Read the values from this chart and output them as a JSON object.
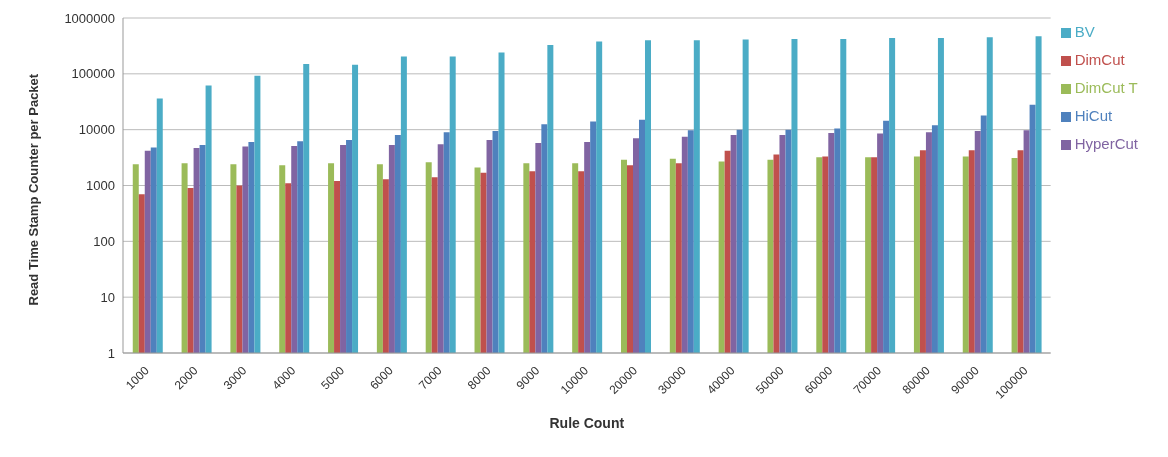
{
  "chart_data": {
    "type": "bar",
    "xlabel": "Rule Count",
    "ylabel": "Read Time  Stamp Counter per Packet",
    "log": "y",
    "grid": "y",
    "legend": "right",
    "categories": [
      "1000",
      "2000",
      "3000",
      "4000",
      "5000",
      "6000",
      "7000",
      "8000",
      "9000",
      "10000",
      "20000",
      "30000",
      "40000",
      "50000",
      "60000",
      "70000",
      "80000",
      "90000",
      "100000"
    ],
    "ylim": [
      1,
      1000000
    ],
    "yticks": [
      1,
      10,
      100,
      1000,
      10000,
      100000,
      1000000
    ],
    "series": [
      {
        "name": "DimCut T",
        "color": "#9bbb59",
        "values": [
          2400,
          2500,
          2400,
          2300,
          2500,
          2400,
          2600,
          2100,
          2500,
          2500,
          2900,
          3000,
          2700,
          2900,
          3200,
          3200,
          3300,
          3300,
          3100
        ]
      },
      {
        "name": "DimCut",
        "color": "#c0504d",
        "values": [
          700,
          900,
          1000,
          1100,
          1200,
          1300,
          1400,
          1700,
          1800,
          1800,
          2300,
          2500,
          4200,
          3600,
          3300,
          3200,
          4300,
          4300,
          4300
        ]
      },
      {
        "name": "HyperCut",
        "color": "#8064a2",
        "values": [
          4200,
          4700,
          5000,
          5100,
          5300,
          5300,
          5500,
          6500,
          5800,
          6000,
          7000,
          7500,
          8000,
          8000,
          8700,
          8500,
          9000,
          9500,
          9800
        ]
      },
      {
        "name": "HiCut",
        "color": "#4f81bd",
        "values": [
          4800,
          5300,
          6000,
          6200,
          6500,
          8000,
          9000,
          9500,
          12500,
          14000,
          15000,
          9800,
          10000,
          10000,
          10500,
          14500,
          12000,
          18000,
          28000
        ]
      },
      {
        "name": "BV",
        "color": "#4bacc6",
        "values": [
          36000,
          62000,
          92000,
          150000,
          145000,
          205000,
          205000,
          240000,
          330000,
          380000,
          400000,
          400000,
          410000,
          420000,
          420000,
          440000,
          440000,
          450000,
          470000
        ]
      }
    ]
  }
}
